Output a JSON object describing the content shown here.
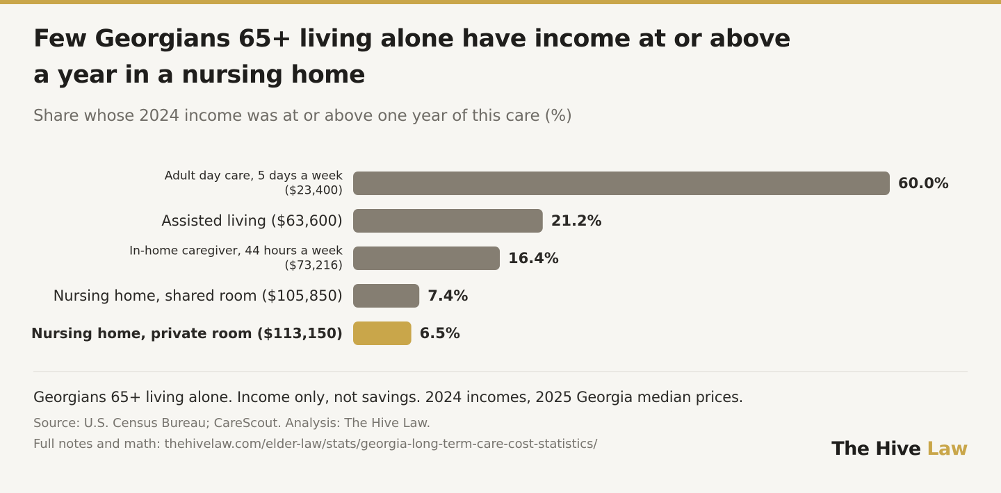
{
  "title": "Few Georgians 65+ living alone have income at or above a year in a nursing home",
  "subtitle": "Share whose 2024 income was at or above one year of this care (%)",
  "chart_data": {
    "type": "bar",
    "orientation": "horizontal",
    "categories": [
      [
        "Adult day care, 5 days a week",
        "($23,400)"
      ],
      [
        "Assisted living ($63,600)"
      ],
      [
        "In-home caregiver, 44 hours a week",
        "($73,216)"
      ],
      [
        "Nursing home, shared room ($105,850)"
      ],
      [
        "Nursing home, private room ($113,150)"
      ]
    ],
    "values": [
      60.0,
      21.2,
      16.4,
      7.4,
      6.5
    ],
    "value_labels": [
      "60.0%",
      "21.2%",
      "16.4%",
      "7.4%",
      "6.5%"
    ],
    "highlight_index": 4,
    "colors": {
      "default": "#857e72",
      "highlight": "#c9a64a"
    },
    "xlim": [
      0,
      60
    ],
    "grid": false,
    "legend": "none"
  },
  "footer": {
    "note": "Georgians 65+ living alone. Income only, not savings. 2024 incomes, 2025 Georgia median prices.",
    "source": "Source: U.S. Census Bureau; CareScout. Analysis: The Hive Law.",
    "full_notes": "Full notes and math: thehivelaw.com/elder-law/stats/georgia-long-term-care-cost-statistics/"
  },
  "brand": {
    "name": "The Hive",
    "accent": "Law"
  }
}
